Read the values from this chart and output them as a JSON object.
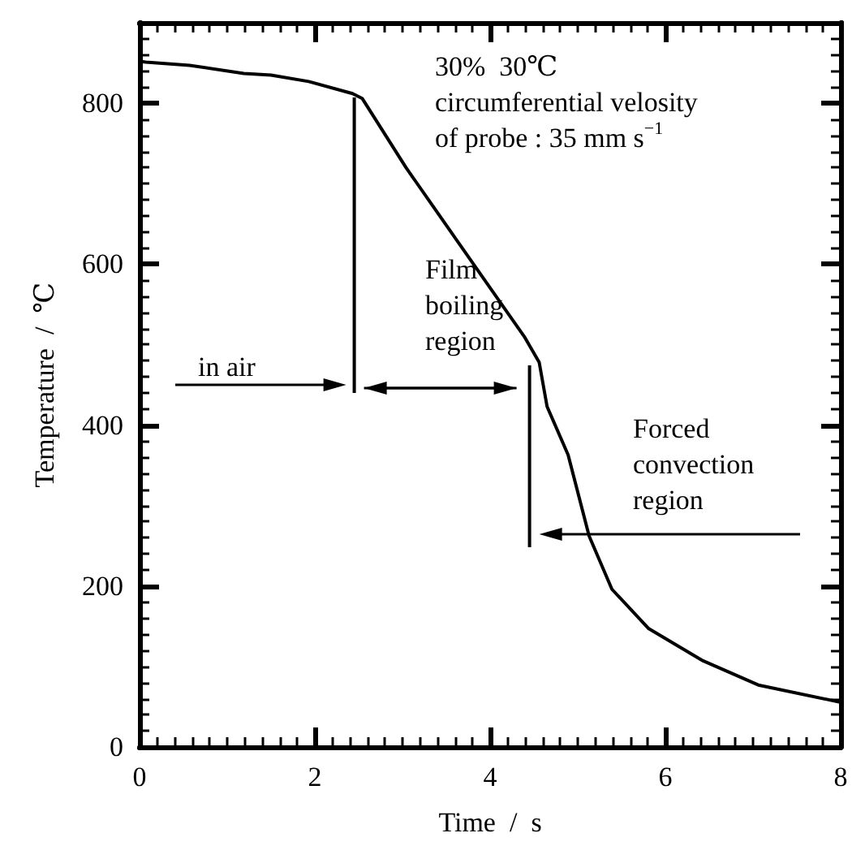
{
  "chart_data": {
    "type": "line",
    "xlabel": "Time  /  s",
    "ylabel": "Temperature  /  ℃",
    "xlim": [
      0,
      8
    ],
    "xticks": [
      0,
      2,
      4,
      6,
      8
    ],
    "ylim": [
      0,
      900
    ],
    "yticks": [
      0,
      200,
      400,
      600,
      800
    ],
    "grid": false,
    "marker": "none",
    "line_style": "solid",
    "series": [
      {
        "color": "#000000",
        "x": [
          0,
          0.07,
          0.57,
          1.19,
          1.5,
          1.93,
          2.43,
          2.54,
          3.04,
          3.65,
          4.39,
          4.56,
          4.65,
          4.89,
          5.13,
          5.39,
          5.81,
          6.43,
          7.06,
          7.98
        ],
        "values": [
          852,
          851,
          847,
          837,
          835,
          827,
          812,
          806,
          720,
          625,
          510,
          478,
          423,
          363,
          262,
          196,
          147,
          107,
          77,
          56
        ]
      }
    ],
    "ref_lines": [
      {
        "axis": "x",
        "value": 2.45
      },
      {
        "axis": "x",
        "value": 4.45
      }
    ],
    "annotations": [
      "30%  30℃\ncircumferential velosity\nof probe : 35 mm s$^{−1}$",
      "in air",
      "Film\nboiling\nregion",
      "Forced\nconvection\nregion"
    ]
  }
}
